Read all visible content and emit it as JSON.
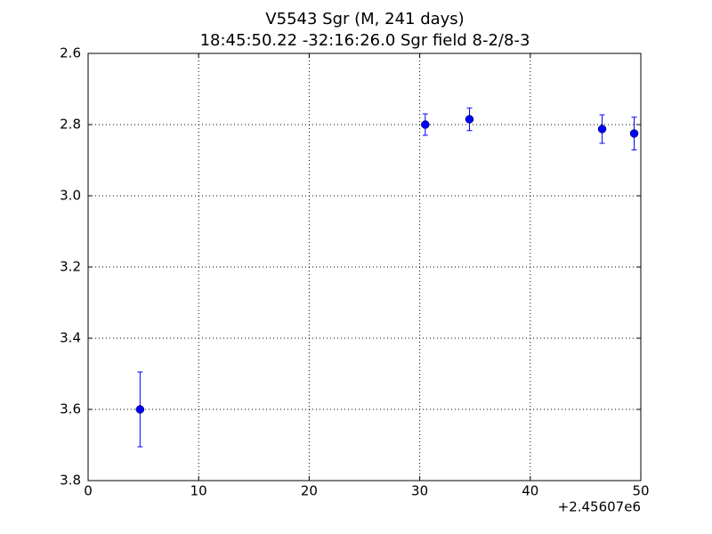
{
  "chart_data": {
    "type": "errorbar",
    "title": "V5543 Sgr  (M, 241 days)",
    "subtitle": "18:45:50.22 -32:16:26.0 Sgr field 8-2/8-3",
    "x_offset_label": "+2.45607e6",
    "x": [
      4.7,
      30.5,
      34.5,
      46.5,
      49.4
    ],
    "series": [
      {
        "color": "#0000ff",
        "values": [
          3.6,
          2.8,
          2.785,
          2.8125,
          2.825
        ],
        "errors": [
          0.105,
          0.03,
          0.032,
          0.04,
          0.046
        ]
      }
    ],
    "xlim": [
      0,
      50
    ],
    "xticks": [
      0,
      10,
      20,
      30,
      40,
      50
    ],
    "ylim": [
      2.6,
      3.8
    ],
    "y_inverted": true,
    "yticks": [
      2.6,
      2.8,
      {
        "value": 3,
        "label": "3.0"
      },
      3.2,
      3.4,
      3.6,
      3.8
    ],
    "grid": true
  }
}
